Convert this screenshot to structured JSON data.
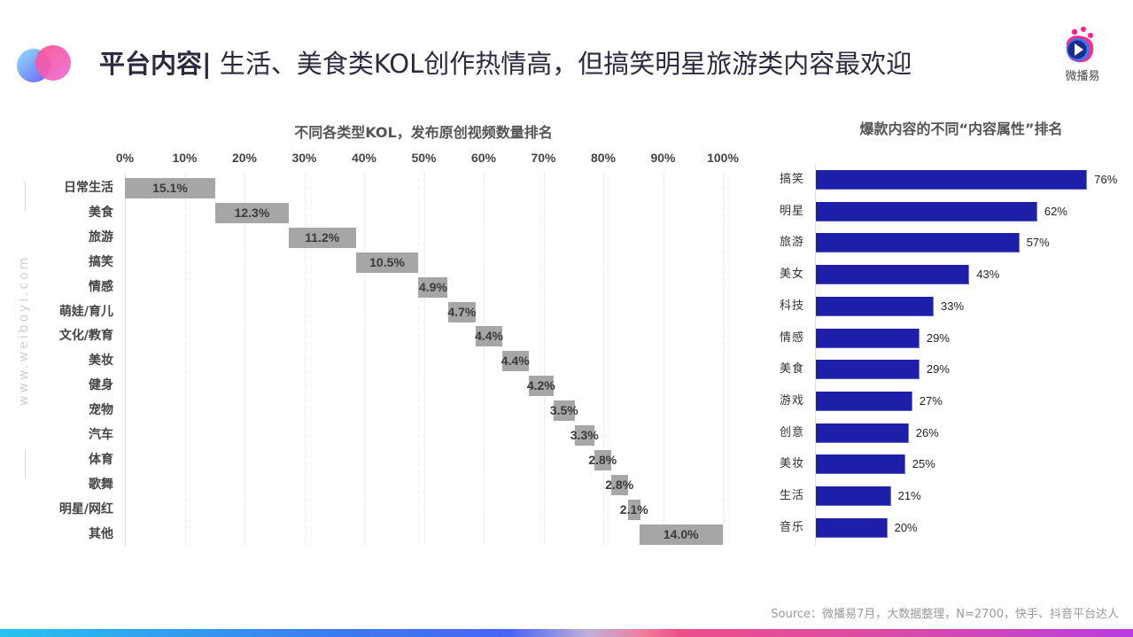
{
  "header": {
    "title_bold": "平台内容",
    "title_sep": "|",
    "title_rest": " 生活、美食类KOL创作热情高，但搞笑明星旅游类内容最欢迎",
    "brand_name": "微播易",
    "side_url": "www.weiboyi.com"
  },
  "colors": {
    "left_bar": "#a6a6a6",
    "right_bar": "#1e1fa8",
    "title_text": "#2b2a3e"
  },
  "chart_data": [
    {
      "type": "bar",
      "subtype": "waterfall-horizontal",
      "title": "不同各类型KOL，发布原创视频数量排名",
      "xlabel": "",
      "ylabel": "",
      "xlim": [
        0,
        100
      ],
      "x_ticks": [
        "0%",
        "10%",
        "20%",
        "30%",
        "40%",
        "50%",
        "60%",
        "70%",
        "80%",
        "90%",
        "100%"
      ],
      "grid": true,
      "categories": [
        "日常生活",
        "美食",
        "旅游",
        "搞笑",
        "情感",
        "萌娃/育儿",
        "文化/教育",
        "美妆",
        "健身",
        "宠物",
        "汽车",
        "体育",
        "歌舞",
        "明星/网红",
        "其他"
      ],
      "values": [
        15.1,
        12.3,
        11.2,
        10.5,
        4.9,
        4.7,
        4.4,
        4.4,
        4.2,
        3.5,
        3.3,
        2.8,
        2.8,
        2.1,
        14.0
      ],
      "labels": [
        "15.1%",
        "12.3%",
        "11.2%",
        "10.5%",
        "4.9%",
        "4.7%",
        "4.4%",
        "4.4%",
        "4.2%",
        "3.5%",
        "3.3%",
        "2.8%",
        "2.8%",
        "2.1%",
        "14.0%"
      ]
    },
    {
      "type": "bar",
      "subtype": "horizontal",
      "title": "爆款内容的不同“内容属性”排名",
      "xlabel": "",
      "ylabel": "",
      "grid": false,
      "categories": [
        "搞笑",
        "明星",
        "旅游",
        "美女",
        "科技",
        "情感",
        "美食",
        "游戏",
        "创意",
        "美妆",
        "生活",
        "音乐"
      ],
      "values": [
        76,
        62,
        57,
        43,
        33,
        29,
        29,
        27,
        26,
        25,
        21,
        20
      ],
      "labels": [
        "76%",
        "62%",
        "57%",
        "43%",
        "33%",
        "29%",
        "29%",
        "27%",
        "26%",
        "25%",
        "21%",
        "20%"
      ]
    }
  ],
  "footer": {
    "source": "Source：微播易7月，大数据整理，N=2700，快手、抖音平台达人"
  }
}
